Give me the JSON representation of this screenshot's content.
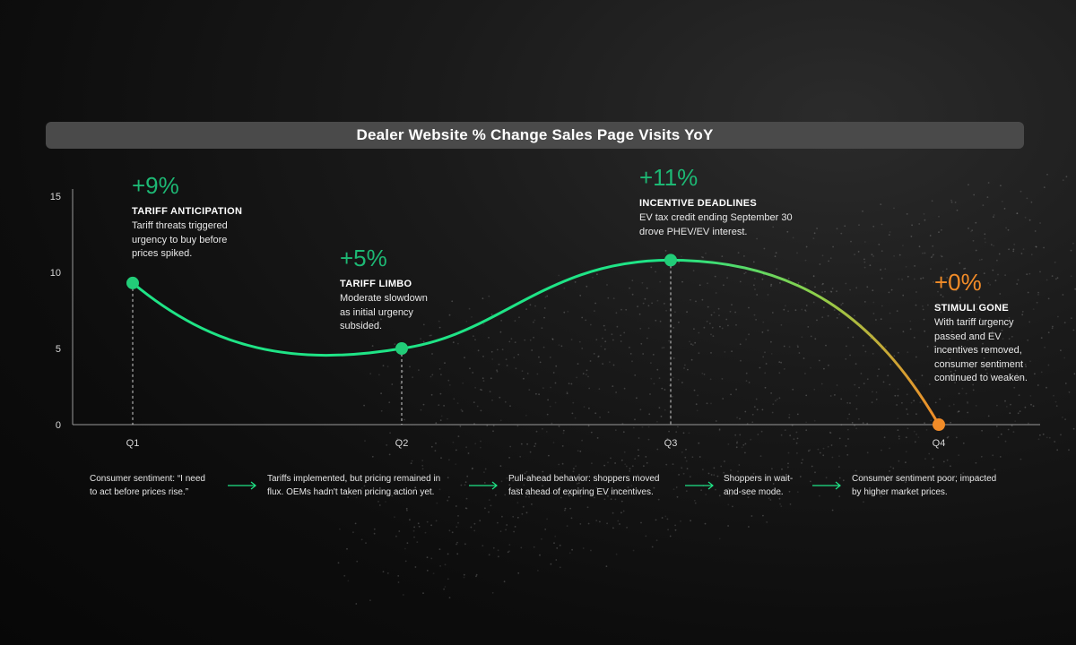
{
  "title": "Dealer Website % Change Sales Page Visits YoY",
  "colors": {
    "green": "#1fe486",
    "orange": "#f28c28",
    "pct_green": "#1db874",
    "pct_orange": "#f28c28"
  },
  "chart_data": {
    "type": "line",
    "title": "Dealer Website % Change Sales Page Visits YoY",
    "xlabel": "",
    "ylabel": "",
    "categories": [
      "Q1",
      "Q2",
      "Q3",
      "Q4"
    ],
    "series": [
      {
        "values": [
          9.3,
          5,
          10.8,
          0
        ]
      }
    ],
    "y_ticks": [
      "0",
      "5",
      "10",
      "15"
    ],
    "ylim": [
      0,
      15
    ],
    "grid": false
  },
  "annotations": [
    {
      "pct": "+9%",
      "heading": "TARIFF ANTICIPATION",
      "desc": [
        "Tariff threats triggered",
        "urgency to buy before",
        "prices spiked."
      ]
    },
    {
      "pct": "+5%",
      "heading": "TARIFF LIMBO",
      "desc": [
        "Moderate slowdown",
        "as initial urgency",
        "subsided."
      ]
    },
    {
      "pct": "+11%",
      "heading": "INCENTIVE DEADLINES",
      "desc": [
        "EV tax credit ending September 30",
        "drove PHEV/EV interest."
      ]
    },
    {
      "pct": "+0%",
      "heading": "STIMULI GONE",
      "desc": [
        "With tariff urgency",
        "passed and EV",
        "incentives removed,",
        "consumer sentiment",
        "continued to weaken."
      ]
    }
  ],
  "sentiment_steps": [
    [
      "Consumer sentiment: “I need",
      "to act before prices rise.”"
    ],
    [
      "Tariffs implemented, but pricing remained in",
      "flux. OEMs hadn't taken pricing action yet."
    ],
    [
      "Pull-ahead behavior: shoppers moved",
      "fast ahead of expiring EV incentives."
    ],
    [
      "Shoppers in wait-",
      "and-see mode."
    ],
    [
      "Consumer sentiment poor; impacted",
      "by higher market prices."
    ]
  ]
}
